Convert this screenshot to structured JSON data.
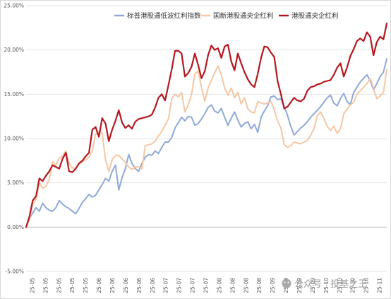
{
  "chart_data": {
    "type": "line",
    "ylim": [
      -5,
      25
    ],
    "yticks": [
      -5,
      0,
      5,
      10,
      15,
      20,
      25
    ],
    "ytick_labels": [
      "-5.00%",
      "0.00%",
      "5.00%",
      "10.00%",
      "15.00%",
      "20.00%",
      "25.00%"
    ],
    "x_tick_labels": [
      "25-05",
      "25-05",
      "25-05",
      "25-05",
      "25-05",
      "25-06",
      "25-06",
      "25-06",
      "25-06",
      "25-06",
      "25-07",
      "25-07",
      "25-07",
      "25-07",
      "25-08",
      "25-08",
      "25-08",
      "25-08",
      "25-09",
      "25-09",
      "25-09",
      "25-09",
      "25-10",
      "25-10",
      "25-10",
      "25-10",
      "25-11"
    ],
    "grid": "horizontal",
    "legend_position": "top",
    "series": [
      {
        "name": "标普港股通低波红利指数",
        "color": "#8fa9d8",
        "values": [
          0.0,
          1.0,
          1.6,
          2.2,
          1.8,
          2.7,
          2.2,
          1.9,
          1.8,
          2.2,
          3.0,
          2.6,
          2.3,
          2.1,
          1.8,
          1.5,
          2.1,
          2.8,
          3.2,
          3.7,
          3.4,
          3.6,
          4.2,
          4.8,
          5.5,
          5.2,
          6.3,
          7.0,
          4.2,
          5.6,
          6.6,
          8.2,
          7.2,
          6.6,
          6.3,
          7.2,
          7.9,
          8.2,
          8.1,
          8.6,
          8.3,
          9.0,
          9.6,
          9.6,
          10.1,
          11.2,
          11.8,
          12.4,
          12.0,
          12.5,
          12.4,
          11.5,
          11.7,
          12.2,
          12.8,
          13.5,
          13.8,
          13.1,
          12.9,
          13.4,
          12.4,
          11.5,
          12.3,
          13.0,
          12.1,
          11.3,
          11.7,
          11.9,
          11.1,
          11.6,
          10.7,
          12.4,
          13.1,
          13.7,
          14.7,
          14.8,
          14.4,
          14.5,
          13.6,
          12.6,
          11.4,
          10.4,
          10.8,
          11.2,
          11.5,
          11.9,
          12.4,
          12.8,
          13.2,
          13.6,
          14.1,
          14.6,
          14.9,
          14.0,
          13.7,
          14.5,
          15.1,
          14.2,
          13.8,
          15.2,
          15.8,
          16.4,
          16.8,
          17.2,
          16.5,
          15.5,
          16.2,
          17.0,
          17.5,
          19.0
        ]
      },
      {
        "name": "国新港股通央企红利",
        "color": "#f5c7a3",
        "values": [
          0.0,
          0.8,
          2.6,
          3.1,
          5.0,
          4.4,
          4.6,
          5.4,
          7.4,
          7.0,
          7.8,
          8.0,
          8.6,
          7.2,
          6.7,
          6.6,
          7.1,
          7.4,
          7.6,
          7.9,
          8.6,
          10.5,
          10.8,
          10.6,
          7.6,
          6.3,
          7.6,
          8.1,
          8.1,
          7.7,
          7.3,
          6.8,
          6.5,
          6.8,
          6.8,
          6.6,
          9.2,
          9.3,
          9.4,
          9.7,
          10.3,
          10.8,
          11.5,
          12.2,
          14.5,
          15.0,
          14.7,
          15.2,
          13.0,
          13.8,
          15.0,
          17.3,
          17.6,
          15.8,
          14.2,
          15.7,
          16.6,
          17.4,
          18.2,
          17.2,
          15.7,
          14.9,
          15.7,
          14.6,
          15.2,
          13.9,
          14.6,
          13.4,
          13.0,
          12.9,
          14.2,
          14.0,
          13.9,
          14.0,
          14.2,
          13.3,
          12.0,
          11.2,
          9.3,
          9.0,
          9.2,
          9.6,
          9.5,
          9.4,
          9.6,
          9.8,
          10.4,
          11.1,
          12.6,
          13.0,
          12.3,
          11.4,
          10.9,
          11.4,
          10.6,
          11.1,
          12.8,
          13.3,
          13.8,
          14.1,
          15.0,
          15.4,
          15.8,
          16.2,
          16.8,
          15.7,
          14.5,
          14.8,
          15.2,
          17.8
        ]
      },
      {
        "name": "港股通央企红利",
        "color": "#b3181f",
        "values": [
          0.0,
          1.2,
          3.0,
          3.5,
          5.5,
          5.2,
          5.8,
          6.3,
          7.0,
          6.8,
          6.6,
          7.7,
          8.4,
          6.3,
          6.2,
          6.6,
          7.2,
          7.5,
          8.0,
          8.4,
          11.0,
          11.3,
          10.2,
          12.3,
          11.7,
          9.7,
          11.0,
          12.0,
          13.2,
          11.8,
          11.2,
          11.5,
          11.1,
          11.9,
          12.2,
          12.3,
          12.4,
          12.5,
          12.7,
          13.5,
          14.6,
          15.0,
          14.3,
          16.0,
          17.8,
          19.9,
          19.9,
          19.6,
          17.0,
          17.4,
          18.1,
          19.6,
          18.3,
          16.8,
          17.6,
          19.4,
          20.5,
          20.0,
          20.2,
          19.1,
          20.4,
          20.6,
          18.7,
          17.7,
          19.6,
          18.5,
          17.5,
          16.7,
          16.1,
          15.8,
          17.3,
          19.1,
          20.4,
          20.3,
          19.7,
          19.2,
          16.5,
          15.0,
          13.4,
          13.6,
          14.1,
          14.6,
          14.3,
          14.2,
          14.5,
          15.4,
          15.8,
          15.9,
          16.1,
          16.2,
          16.4,
          16.5,
          16.6,
          17.2,
          18.0,
          18.5,
          17.0,
          18.0,
          19.3,
          20.1,
          21.0,
          21.3,
          21.0,
          22.0,
          21.5,
          19.4,
          20.9,
          21.5,
          21.2,
          23.0
        ]
      }
    ]
  },
  "watermark": {
    "text": "公众号 · 投基之王",
    "icon": "wechat-icon"
  }
}
